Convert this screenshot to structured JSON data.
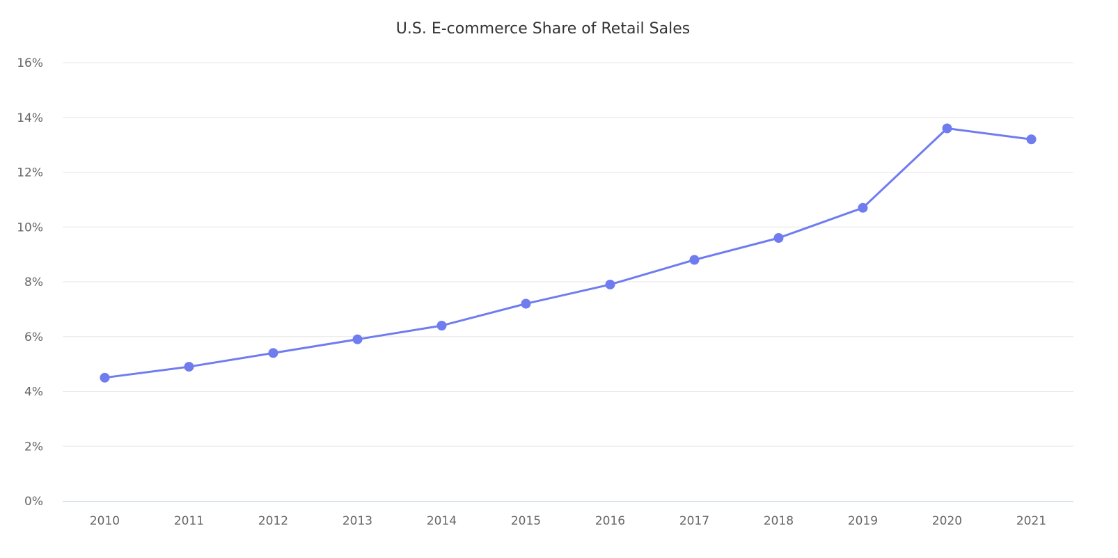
{
  "chart_data": {
    "type": "line",
    "title": "U.S. E-commerce Share of Retail Sales",
    "xlabel": "",
    "ylabel": "",
    "categories": [
      "2010",
      "2011",
      "2012",
      "2013",
      "2014",
      "2015",
      "2016",
      "2017",
      "2018",
      "2019",
      "2020",
      "2021"
    ],
    "series": [
      {
        "values": [
          4.5,
          4.9,
          5.4,
          5.9,
          6.4,
          7.2,
          7.9,
          8.8,
          9.6,
          10.7,
          13.6,
          13.2
        ]
      }
    ],
    "ylim": [
      0,
      16
    ],
    "yticks": [
      0,
      2,
      4,
      6,
      8,
      10,
      12,
      14,
      16
    ],
    "ytick_format": "%",
    "grid": true,
    "legend": "none",
    "colors": {
      "series": "#6f7cf0",
      "grid": "#e6e6e6",
      "axis": "#ccd6eb"
    }
  }
}
